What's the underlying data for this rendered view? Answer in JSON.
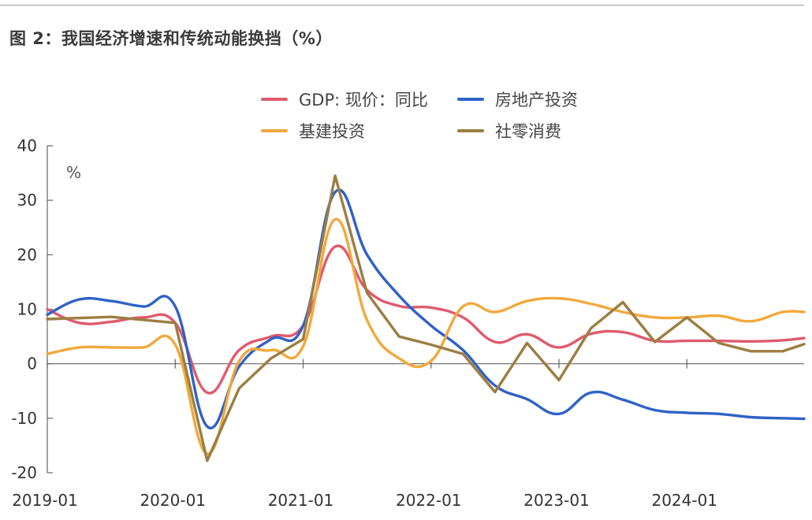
{
  "title": "图 2：我国经济增速和传统动能换挡（%）",
  "chart_data": {
    "type": "line",
    "unit_label": "%",
    "ylim": [
      -20,
      40
    ],
    "y_ticks": [
      40,
      30,
      20,
      10,
      0,
      -10,
      -20
    ],
    "x_range": [
      "2019-01",
      "2024-12"
    ],
    "x_ticks": [
      "2019-01",
      "2020-01",
      "2021-01",
      "2022-01",
      "2023-01",
      "2024-01"
    ],
    "grid": false,
    "legend_position": "top-center",
    "series": [
      {
        "name": "GDP: 现价：同比",
        "color": "#e05a6e",
        "points": [
          [
            "2019-01",
            10.0
          ],
          [
            "2019-04",
            7.5
          ],
          [
            "2019-07",
            7.7
          ],
          [
            "2019-10",
            8.5
          ],
          [
            "2020-01",
            7.5
          ],
          [
            "2020-04",
            -5.3
          ],
          [
            "2020-07",
            2.5
          ],
          [
            "2020-10",
            5.0
          ],
          [
            "2021-01",
            7.0
          ],
          [
            "2021-04",
            21.5
          ],
          [
            "2021-07",
            13.5
          ],
          [
            "2021-10",
            10.6
          ],
          [
            "2022-01",
            10.3
          ],
          [
            "2022-04",
            8.5
          ],
          [
            "2022-07",
            4.0
          ],
          [
            "2022-10",
            5.4
          ],
          [
            "2023-01",
            3.0
          ],
          [
            "2023-04",
            5.5
          ],
          [
            "2023-07",
            5.8
          ],
          [
            "2023-10",
            4.2
          ],
          [
            "2024-01",
            4.2
          ],
          [
            "2024-04",
            4.2
          ],
          [
            "2024-07",
            4.1
          ],
          [
            "2024-10",
            4.3
          ],
          [
            "2024-12",
            4.7
          ]
        ]
      },
      {
        "name": "房地产投资",
        "color": "#2e62c8",
        "points": [
          [
            "2019-01",
            9.0
          ],
          [
            "2019-04",
            11.8
          ],
          [
            "2019-07",
            11.5
          ],
          [
            "2019-10",
            10.5
          ],
          [
            "2020-01",
            10.5
          ],
          [
            "2020-04",
            -11.5
          ],
          [
            "2020-07",
            -0.5
          ],
          [
            "2020-10",
            4.5
          ],
          [
            "2021-01",
            7.0
          ],
          [
            "2021-04",
            31.5
          ],
          [
            "2021-07",
            20.0
          ],
          [
            "2021-10",
            12.5
          ],
          [
            "2022-01",
            7.0
          ],
          [
            "2022-04",
            2.5
          ],
          [
            "2022-07",
            -4.0
          ],
          [
            "2022-10",
            -6.5
          ],
          [
            "2023-01",
            -9.2
          ],
          [
            "2023-04",
            -5.3
          ],
          [
            "2023-07",
            -6.6
          ],
          [
            "2023-10",
            -8.5
          ],
          [
            "2024-01",
            -9.0
          ],
          [
            "2024-04",
            -9.2
          ],
          [
            "2024-07",
            -9.8
          ],
          [
            "2024-10",
            -10.0
          ],
          [
            "2024-12",
            -10.1
          ]
        ]
      },
      {
        "name": "基建投资",
        "color": "#f2a83c",
        "points": [
          [
            "2019-01",
            1.8
          ],
          [
            "2019-04",
            3.0
          ],
          [
            "2019-07",
            3.0
          ],
          [
            "2019-10",
            3.0
          ],
          [
            "2020-01",
            3.5
          ],
          [
            "2020-04",
            -16.5
          ],
          [
            "2020-07",
            0.5
          ],
          [
            "2020-10",
            2.5
          ],
          [
            "2021-01",
            3.2
          ],
          [
            "2021-04",
            26.5
          ],
          [
            "2021-07",
            8.0
          ],
          [
            "2021-10",
            1.0
          ],
          [
            "2022-01",
            0.5
          ],
          [
            "2022-04",
            10.5
          ],
          [
            "2022-07",
            9.5
          ],
          [
            "2022-10",
            11.5
          ],
          [
            "2023-01",
            12.0
          ],
          [
            "2023-04",
            11.0
          ],
          [
            "2023-07",
            9.5
          ],
          [
            "2023-10",
            8.5
          ],
          [
            "2024-01",
            8.5
          ],
          [
            "2024-04",
            8.8
          ],
          [
            "2024-07",
            7.8
          ],
          [
            "2024-10",
            9.5
          ],
          [
            "2024-12",
            9.5
          ]
        ]
      },
      {
        "name": "社零消费",
        "color": "#9c7e42",
        "points": [
          [
            "2019-01",
            8.2
          ],
          [
            "2019-07",
            8.6
          ],
          [
            "2020-01",
            7.5
          ],
          [
            "2020-04",
            -17.8
          ],
          [
            "2020-07",
            -4.5
          ],
          [
            "2020-10",
            1.0
          ],
          [
            "2021-01",
            4.5
          ],
          [
            "2021-04",
            34.5
          ],
          [
            "2021-07",
            13.0
          ],
          [
            "2021-10",
            5.0
          ],
          [
            "2022-01",
            3.5
          ],
          [
            "2022-04",
            1.8
          ],
          [
            "2022-07",
            -5.2
          ],
          [
            "2022-10",
            3.8
          ],
          [
            "2023-01",
            -3.0
          ],
          [
            "2023-04",
            6.5
          ],
          [
            "2023-07",
            11.3
          ],
          [
            "2023-10",
            4.0
          ],
          [
            "2024-01",
            8.5
          ],
          [
            "2024-04",
            3.8
          ],
          [
            "2024-07",
            2.3
          ],
          [
            "2024-10",
            2.3
          ],
          [
            "2024-12",
            3.6
          ]
        ]
      }
    ]
  }
}
